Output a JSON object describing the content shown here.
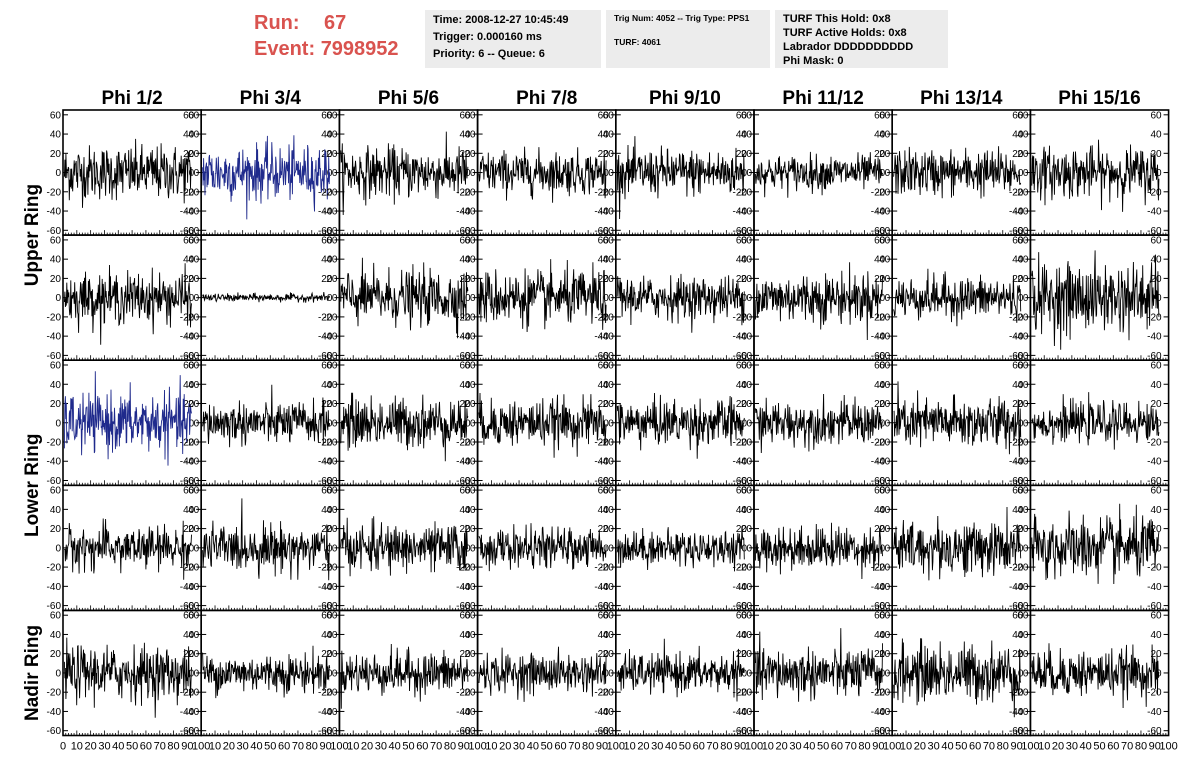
{
  "header": {
    "run_label": "Run:",
    "run_value": "67",
    "event_label": "Event:",
    "event_value": "7998952",
    "box1": [
      "Time: 2008-12-27 10:45:49",
      "Trigger: 0.000160 ms",
      "Priority: 6 -- Queue: 6"
    ],
    "box2": [
      "Trig Num: 4052 -- Trig Type: PPS1",
      "",
      "TURF: 4061"
    ],
    "box3": [
      "TURF This Hold: 0x8",
      "TURF Active Holds: 0x8",
      "Labrador DDDDDDDDDD",
      "Phi Mask: 0"
    ]
  },
  "colors": {
    "header_red": "#d9534f",
    "trace": "#000000",
    "highlight_trace": "#1f2a8c",
    "box_bg": "#ececec"
  },
  "chart_data": {
    "type": "line",
    "columns": [
      "Phi 1/2",
      "Phi 3/4",
      "Phi 5/6",
      "Phi 7/8",
      "Phi 9/10",
      "Phi 11/12",
      "Phi 13/14",
      "Phi 15/16"
    ],
    "ring_labels": [
      "Upper Ring",
      "Lower Ring",
      "Nadir Ring"
    ],
    "rows": 5,
    "row_ring": [
      0,
      0,
      1,
      1,
      2
    ],
    "xlim": [
      0,
      100
    ],
    "ylim": [
      -65,
      65
    ],
    "y_ticks": [
      -60,
      -40,
      -20,
      0,
      20,
      40,
      60
    ],
    "x_ticks": [
      0,
      10,
      20,
      30,
      40,
      50,
      60,
      70,
      80,
      90,
      100
    ],
    "grid": false,
    "samples_per_trace": 260,
    "trace_amplitude": [
      [
        14,
        14,
        13,
        11,
        12,
        9,
        12,
        13
      ],
      [
        13,
        2,
        14,
        14,
        11,
        13,
        11,
        18
      ],
      [
        15,
        11,
        13,
        12,
        12,
        11,
        13,
        10
      ],
      [
        11,
        12,
        12,
        10,
        9,
        11,
        14,
        16
      ],
      [
        14,
        10,
        11,
        10,
        10,
        13,
        15,
        12
      ]
    ],
    "highlighted": [
      {
        "row": 0,
        "col": 1
      },
      {
        "row": 2,
        "col": 0
      }
    ]
  }
}
